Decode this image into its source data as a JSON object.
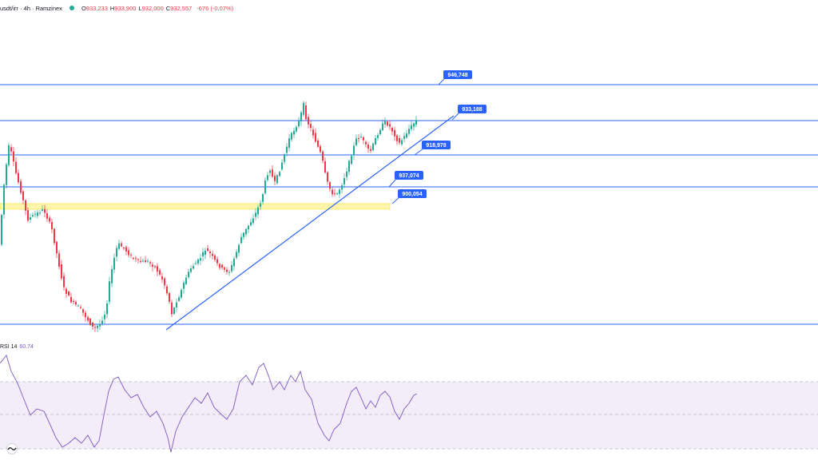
{
  "legend": {
    "symbol": "usdt/irr · 4h · Ramzinex",
    "open_label": "O",
    "open": "933,233",
    "high_label": "H",
    "high": "933,900",
    "low_label": "L",
    "low": "932,000",
    "close_label": "C",
    "close": "932,557",
    "change": "-676 (-0.07%)"
  },
  "rsi": {
    "label": "RSI 14",
    "value": "60.74",
    "line_color": "#7e57c2",
    "band_color": "#ede7f6"
  },
  "colors": {
    "up": "#22ab94",
    "down": "#f23645",
    "level_line": "#2962ff",
    "zone_fill": "#fff59d",
    "label_bg": "#2962ff"
  },
  "chart_data": {
    "type": "candlestick",
    "timeframe": "4h",
    "levels": [
      {
        "label": "946,748"
      },
      {
        "label": "933,188"
      },
      {
        "label": "918,978"
      },
      {
        "label": "937,074"
      },
      {
        "label": "900,054"
      }
    ],
    "trendline": "ascending support",
    "zone": "yellow highlighted zone",
    "rsi_period": 14,
    "rsi_last": 60.74
  }
}
